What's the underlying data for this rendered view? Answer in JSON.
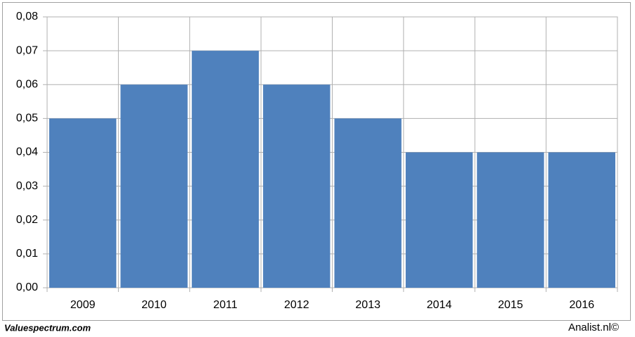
{
  "chart_data": {
    "type": "bar",
    "categories": [
      "2009",
      "2010",
      "2011",
      "2012",
      "2013",
      "2014",
      "2015",
      "2016"
    ],
    "values": [
      0.05,
      0.06,
      0.07,
      0.06,
      0.05,
      0.04,
      0.04,
      0.04
    ],
    "color": "#4f81bd",
    "ylim": [
      0,
      0.08
    ],
    "yticks": [
      {
        "value": 0,
        "label": "0,00"
      },
      {
        "value": 0.01,
        "label": "0,01"
      },
      {
        "value": 0.02,
        "label": "0,02"
      },
      {
        "value": 0.03,
        "label": "0,03"
      },
      {
        "value": 0.04,
        "label": "0,04"
      },
      {
        "value": 0.05,
        "label": "0,05"
      },
      {
        "value": 0.06,
        "label": "0,06"
      },
      {
        "value": 0.07,
        "label": "0,07"
      },
      {
        "value": 0.08,
        "label": "0,08"
      }
    ],
    "grid": true,
    "source": "Valuespectrum.com",
    "credit": "Analist.nl©"
  }
}
